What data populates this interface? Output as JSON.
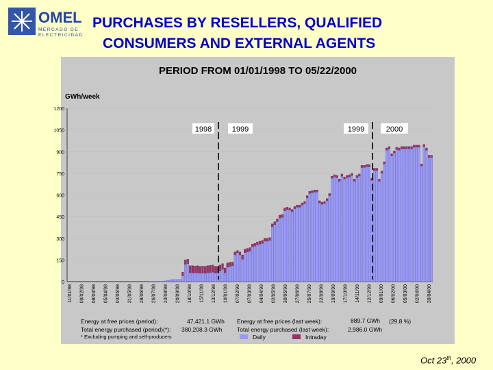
{
  "logo": {
    "name": "OMEL",
    "subtitle_line1": "MERCADO DE",
    "subtitle_line2": "ELECTRICIDAD"
  },
  "title": {
    "line1": "PURCHASES BY RESELLERS, QUALIFIED",
    "line2": "CONSUMERS AND EXTERNAL AGENTS"
  },
  "chart_data": {
    "type": "bar",
    "stacked": true,
    "title": "PERIOD FROM 01/01/1998 TO 05/22/2000",
    "ylabel": "GWh/week",
    "ylim": [
      0,
      1200
    ],
    "y_ticks": [
      "0",
      "150",
      "300",
      "450",
      "600",
      "750",
      "900",
      "1050",
      "1200"
    ],
    "x_tick_labels": [
      "11/01/98",
      "08/02/98",
      "08/03/98",
      "05/04/98",
      "03/05/98",
      "31/05/98",
      "28/06/98",
      "26/07/98",
      "23/08/98",
      "20/09/98",
      "18/10/98",
      "15/11/98",
      "13/12/98",
      "10/01/99",
      "07/02/99",
      "07/03/99",
      "04/04/99",
      "02/05/99",
      "30/05/99",
      "27/06/99",
      "25/07/99",
      "22/08/99",
      "19/09/99",
      "17/10/99",
      "14/11/99",
      "12/12/99",
      "09/01/00",
      "06/02/00",
      "05/03/00",
      "02/04/00",
      "30/04/00"
    ],
    "series": [
      {
        "name": "Daily",
        "color": "#9999ff",
        "values": [
          0,
          0,
          0,
          0,
          0,
          0,
          0,
          0,
          0,
          0,
          0,
          0,
          0,
          0,
          0,
          0,
          0,
          0,
          0,
          0,
          0,
          0,
          0,
          0,
          0,
          0,
          0,
          0,
          0,
          0,
          0,
          0,
          0,
          2,
          3,
          3,
          3,
          3,
          3,
          5,
          8,
          12,
          15,
          15,
          15,
          15,
          40,
          120,
          125,
          60,
          60,
          60,
          60,
          58,
          58,
          58,
          62,
          62,
          65,
          58,
          60,
          75,
          85,
          60,
          100,
          105,
          110,
          185,
          200,
          185,
          155,
          200,
          205,
          210,
          240,
          245,
          255,
          260,
          265,
          280,
          280,
          285,
          380,
          395,
          415,
          440,
          445,
          490,
          500,
          495,
          485,
          505,
          515,
          515,
          530,
          540,
          580,
          610,
          615,
          620,
          620,
          545,
          535,
          540,
          560,
          595,
          715,
          725,
          720,
          695,
          730,
          710,
          720,
          725,
          735,
          695,
          720,
          730,
          790,
          790,
          795,
          795,
          700,
          770,
          770,
          695,
          750,
          815,
          910,
          920,
          870,
          890,
          915,
          910,
          920,
          920,
          920,
          920,
          920,
          930,
          930,
          930,
          800,
          935,
          910,
          860,
          860
        ],
        "values_note": ""
      },
      {
        "name": "Intraday",
        "color": "#993366",
        "values": [
          0,
          0,
          0,
          0,
          0,
          0,
          0,
          0,
          0,
          0,
          0,
          0,
          0,
          0,
          0,
          0,
          0,
          0,
          0,
          0,
          0,
          0,
          0,
          0,
          0,
          0,
          0,
          0,
          0,
          0,
          0,
          0,
          0,
          0,
          0,
          0,
          0,
          0,
          0,
          0,
          0,
          0,
          0,
          0,
          0,
          0,
          25,
          30,
          30,
          50,
          50,
          48,
          50,
          48,
          50,
          48,
          48,
          50,
          50,
          48,
          45,
          40,
          40,
          35,
          30,
          30,
          25,
          20,
          15,
          20,
          30,
          25,
          25,
          25,
          20,
          20,
          20,
          20,
          20,
          20,
          20,
          20,
          20,
          20,
          20,
          20,
          20,
          20,
          15,
          15,
          15,
          15,
          15,
          15,
          15,
          15,
          15,
          15,
          15,
          15,
          15,
          15,
          15,
          15,
          15,
          15,
          15,
          15,
          15,
          15,
          15,
          15,
          15,
          15,
          15,
          15,
          15,
          15,
          15,
          15,
          15,
          15,
          15,
          15,
          15,
          15,
          15,
          15,
          15,
          15,
          15,
          15,
          15,
          15,
          15,
          15,
          15,
          15,
          15,
          15,
          15,
          15,
          15,
          15,
          15,
          15,
          15,
          15,
          15,
          15
        ]
      }
    ],
    "annotations": [
      "1998",
      "1999",
      "1999",
      "2000"
    ],
    "legend_position": "bottom"
  },
  "info": {
    "free_prices_period_label": "Energy at free prices (period):",
    "free_prices_period_value": "47,421.1 GWh",
    "total_period_label": "Total energy purchased (period)(*):",
    "total_period_value": "380,208.3 GWh",
    "footnote": "* Excluding pumping and self-producers",
    "free_prices_week_label": "Energy at free prices (last week):",
    "free_prices_week_value": "889.7 GWh",
    "free_prices_week_pct": "(29.8 %)",
    "total_week_label": "Total energy purchased (last week):",
    "total_week_value": "2,986.0 GWh"
  },
  "footer": {
    "date_main": "Oct 23",
    "date_sup": "th",
    "date_year": ", 2000"
  }
}
